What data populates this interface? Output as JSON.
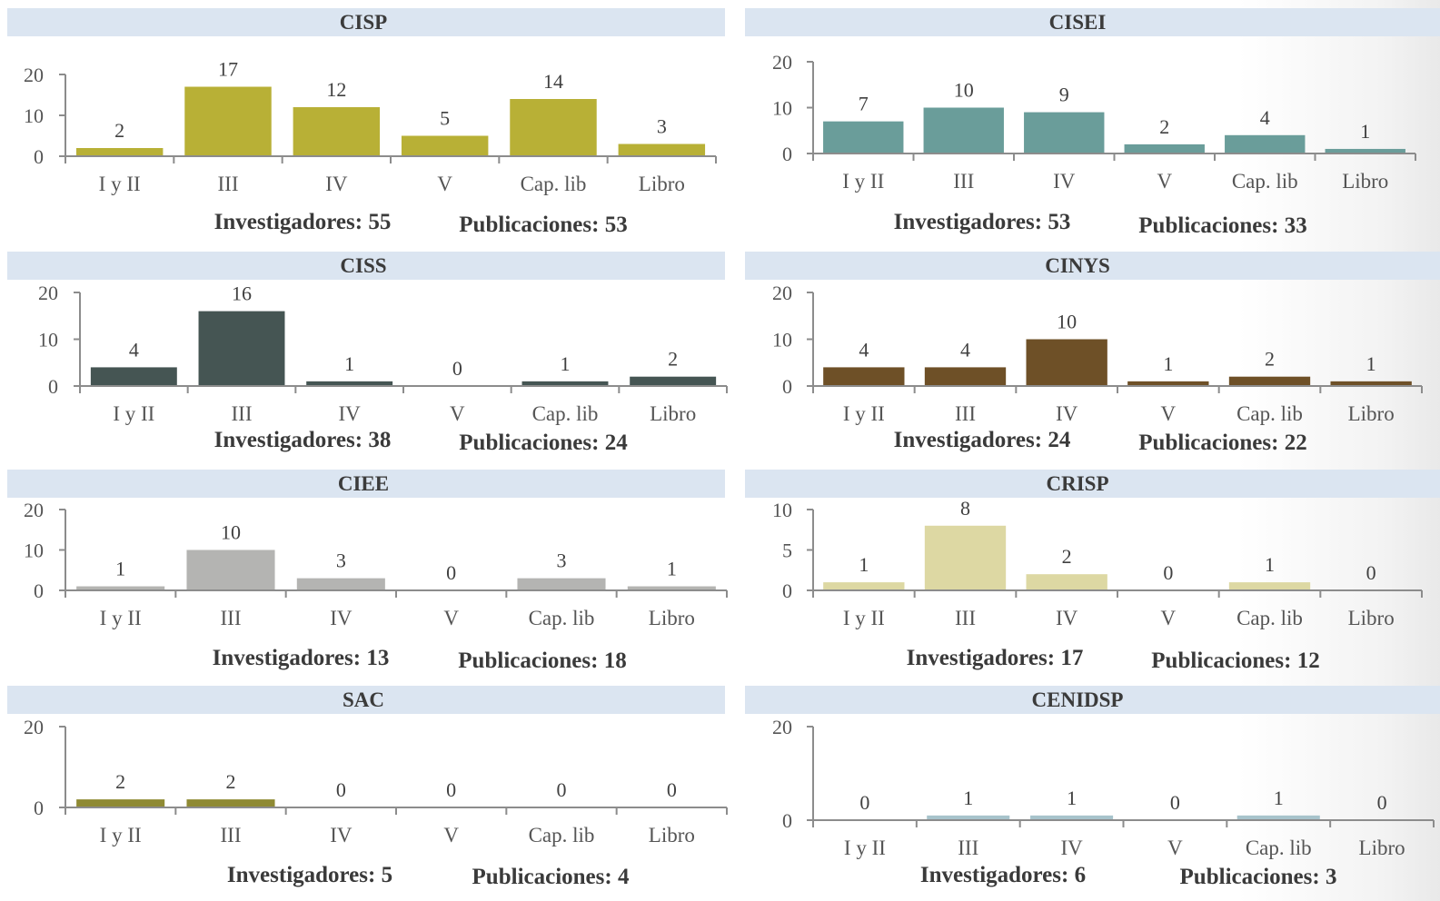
{
  "chart_data": [
    {
      "type": "bar",
      "title": "CISP",
      "categories": [
        "I y II",
        "III",
        "IV",
        "V",
        "Cap. lib",
        "Libro"
      ],
      "values": [
        2,
        17,
        12,
        5,
        14,
        3
      ],
      "ylim": [
        0,
        20
      ],
      "yticks": [
        0,
        10,
        20
      ],
      "color": "#b8b036",
      "stats": {
        "investigadores": "Investigadores: 55",
        "publicaciones": "Publicaciones: 53"
      }
    },
    {
      "type": "bar",
      "title": "CISEI",
      "categories": [
        "I y II",
        "III",
        "IV",
        "V",
        "Cap. lib",
        "Libro"
      ],
      "values": [
        7,
        10,
        9,
        2,
        4,
        1
      ],
      "ylim": [
        0,
        20
      ],
      "yticks": [
        0,
        10,
        20
      ],
      "color": "#6a9d9a",
      "stats": {
        "investigadores": "Investigadores: 53",
        "publicaciones": "Publicaciones: 33"
      }
    },
    {
      "type": "bar",
      "title": "CISS",
      "categories": [
        "I y II",
        "III",
        "IV",
        "V",
        "Cap. lib",
        "Libro"
      ],
      "values": [
        4,
        16,
        1,
        0,
        1,
        2
      ],
      "ylim": [
        0,
        20
      ],
      "yticks": [
        0,
        10,
        20
      ],
      "color": "#455553",
      "stats": {
        "investigadores": "Investigadores: 38",
        "publicaciones": "Publicaciones: 24"
      }
    },
    {
      "type": "bar",
      "title": "CINYS",
      "categories": [
        "I y II",
        "III",
        "IV",
        "V",
        "Cap. lib",
        "Libro"
      ],
      "values": [
        4,
        4,
        10,
        1,
        2,
        1
      ],
      "ylim": [
        0,
        20
      ],
      "yticks": [
        0,
        10,
        20
      ],
      "color": "#6e5027",
      "stats": {
        "investigadores": "Investigadores: 24",
        "publicaciones": "Publicaciones: 22"
      }
    },
    {
      "type": "bar",
      "title": "CIEE",
      "categories": [
        "I y II",
        "III",
        "IV",
        "V",
        "Cap. lib",
        "Libro"
      ],
      "values": [
        1,
        10,
        3,
        0,
        3,
        1
      ],
      "ylim": [
        0,
        20
      ],
      "yticks": [
        0,
        10,
        20
      ],
      "color": "#b4b4b2",
      "stats": {
        "investigadores": "Investigadores: 13",
        "publicaciones": "Publicaciones: 18"
      }
    },
    {
      "type": "bar",
      "title": "CRISP",
      "categories": [
        "I y II",
        "III",
        "IV",
        "V",
        "Cap. lib",
        "Libro"
      ],
      "values": [
        1,
        8,
        2,
        0,
        1,
        0
      ],
      "ylim": [
        0,
        10
      ],
      "yticks": [
        0,
        5,
        10
      ],
      "color": "#ddd8a3",
      "stats": {
        "investigadores": "Investigadores: 17",
        "publicaciones": "Publicaciones: 12"
      }
    },
    {
      "type": "bar",
      "title": "SAC",
      "categories": [
        "I y II",
        "III",
        "IV",
        "V",
        "Cap. lib",
        "Libro"
      ],
      "values": [
        2,
        2,
        0,
        0,
        0,
        0
      ],
      "ylim": [
        0,
        20
      ],
      "yticks": [
        0,
        20
      ],
      "color": "#8f8a33",
      "stats": {
        "investigadores": "Investigadores: 5",
        "publicaciones": "Publicaciones: 4"
      }
    },
    {
      "type": "bar",
      "title": "CENIDSP",
      "categories": [
        "I y II",
        "III",
        "IV",
        "V",
        "Cap. lib",
        "Libro"
      ],
      "values": [
        0,
        1,
        1,
        0,
        1,
        0
      ],
      "ylim": [
        0,
        20
      ],
      "yticks": [
        0,
        20
      ],
      "color": "#a7c3cb",
      "stats": {
        "investigadores": "Investigadores: 6",
        "publicaciones": "Publicaciones: 3"
      }
    }
  ]
}
